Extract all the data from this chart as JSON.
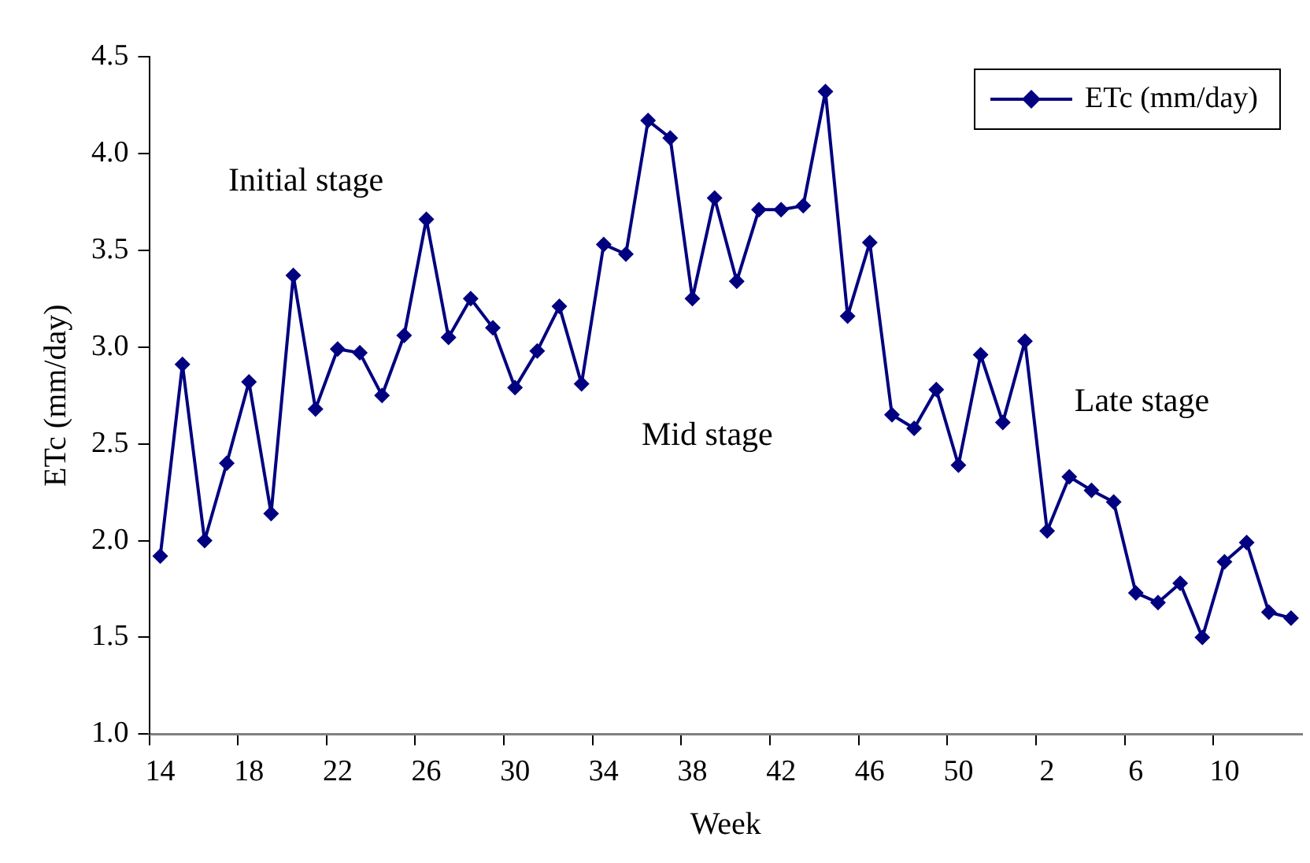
{
  "chart_data": {
    "type": "line",
    "xlabel": "Week",
    "ylabel": "ETc (mm/day)",
    "categories": [
      "14",
      null,
      null,
      null,
      "18",
      null,
      null,
      null,
      "22",
      null,
      null,
      null,
      "26",
      null,
      null,
      null,
      "30",
      null,
      null,
      null,
      "34",
      null,
      null,
      null,
      "38",
      null,
      null,
      null,
      "42",
      null,
      null,
      null,
      "46",
      null,
      null,
      null,
      "50",
      null,
      null,
      null,
      "2",
      null,
      null,
      null,
      "6",
      null,
      null,
      null,
      "10",
      null,
      null,
      null
    ],
    "series": [
      {
        "name": "ETc (mm/day)",
        "color": "#000080",
        "values": [
          1.92,
          2.91,
          2.0,
          2.4,
          2.82,
          2.14,
          3.37,
          2.68,
          2.99,
          2.97,
          2.75,
          3.06,
          3.66,
          3.05,
          3.25,
          3.1,
          2.79,
          2.98,
          3.21,
          2.81,
          3.53,
          3.48,
          4.17,
          4.08,
          3.25,
          3.77,
          3.34,
          3.71,
          3.71,
          3.73,
          4.32,
          3.16,
          3.54,
          2.65,
          2.58,
          2.78,
          2.39,
          2.96,
          2.61,
          3.03,
          2.05,
          2.33,
          2.26,
          2.2,
          1.73,
          1.68,
          1.78,
          1.5,
          1.89,
          1.99,
          1.63,
          1.6
        ]
      }
    ],
    "ylim": [
      1,
      4.5
    ],
    "yticks": [
      {
        "value": 1,
        "label": "1.0"
      },
      {
        "value": 1.5,
        "label": "1.5"
      },
      {
        "value": 2,
        "label": "2.0"
      },
      {
        "value": 2.5,
        "label": "2.5"
      },
      {
        "value": 3,
        "label": "3.0"
      },
      {
        "value": 3.5,
        "label": "3.5"
      },
      {
        "value": 4,
        "label": "4.0"
      },
      {
        "value": 4.5,
        "label": "4.5"
      }
    ],
    "annotations": [
      "Initial stage",
      "Mid stage",
      "Late stage"
    ],
    "legend": "top right",
    "marker": "diamond",
    "line_style": "solid"
  }
}
